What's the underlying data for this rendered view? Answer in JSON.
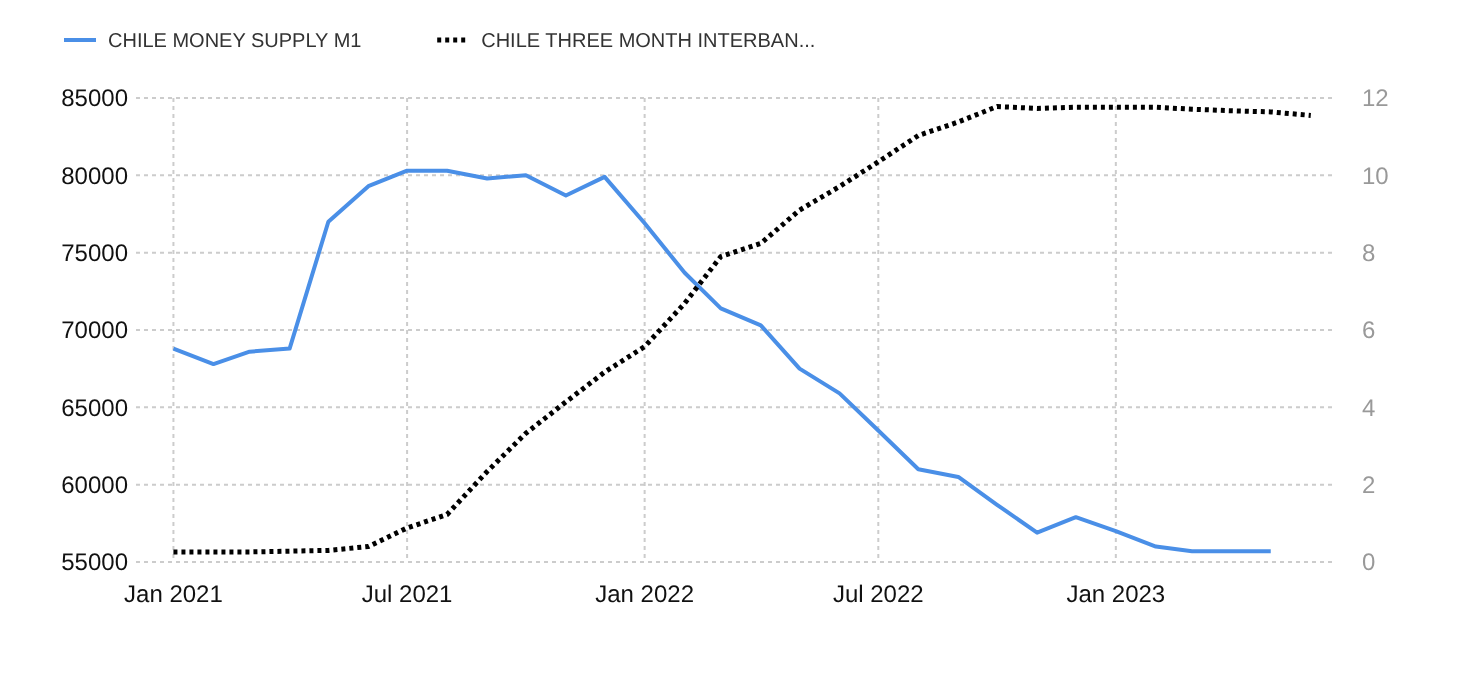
{
  "chart_data": {
    "type": "line",
    "x": [
      "2021-01",
      "2021-02",
      "2021-03",
      "2021-04",
      "2021-05",
      "2021-06",
      "2021-07",
      "2021-08",
      "2021-09",
      "2021-10",
      "2021-11",
      "2021-12",
      "2022-01",
      "2022-02",
      "2022-03",
      "2022-04",
      "2022-05",
      "2022-06",
      "2022-07",
      "2022-08",
      "2022-09",
      "2022-10",
      "2022-11",
      "2022-12",
      "2023-01",
      "2023-02",
      "2023-03",
      "2023-04",
      "2023-05",
      "2023-06"
    ],
    "series": [
      {
        "name": "CHILE MONEY SUPPLY M1",
        "color": "#4a8fe7",
        "line_style": "solid",
        "values": [
          68800,
          67800,
          68600,
          68800,
          77000,
          79300,
          80300,
          80300,
          79800,
          80000,
          78700,
          79900,
          76900,
          73700,
          71400,
          70300,
          67500,
          65900,
          63500,
          61000,
          60500,
          58700,
          56900,
          57900,
          57000,
          56000,
          55700,
          55700,
          55700,
          null
        ]
      },
      {
        "name": "CHILE THREE MONTH INTERBAN...",
        "color": "#000000",
        "line_style": "dotted",
        "axis": "y2",
        "values": [
          0.26,
          0.26,
          0.26,
          0.28,
          0.3,
          0.4,
          0.88,
          1.23,
          2.34,
          3.33,
          4.14,
          4.91,
          5.57,
          6.69,
          7.9,
          8.24,
          9.1,
          9.71,
          10.35,
          11.03,
          11.38,
          11.78,
          11.73,
          11.76,
          11.76,
          11.76,
          11.71,
          11.67,
          11.64,
          11.55
        ]
      }
    ],
    "xlim": [
      "2020-12-03",
      "2023-06-19"
    ],
    "xticks": [
      {
        "value": "2021-01",
        "label": "Jan 2021"
      },
      {
        "value": "2021-07",
        "label": "Jul 2021"
      },
      {
        "value": "2022-01",
        "label": "Jan 2022"
      },
      {
        "value": "2022-07",
        "label": "Jul 2022"
      },
      {
        "value": "2023-01",
        "label": "Jan 2023"
      }
    ],
    "ylim": [
      55000,
      85000
    ],
    "yticks": [
      55000,
      60000,
      65000,
      70000,
      75000,
      80000,
      85000
    ],
    "y2lim": [
      0,
      12
    ],
    "y2ticks": [
      0,
      2,
      4,
      6,
      8,
      10,
      12
    ],
    "grid": true,
    "legend": "top left"
  }
}
